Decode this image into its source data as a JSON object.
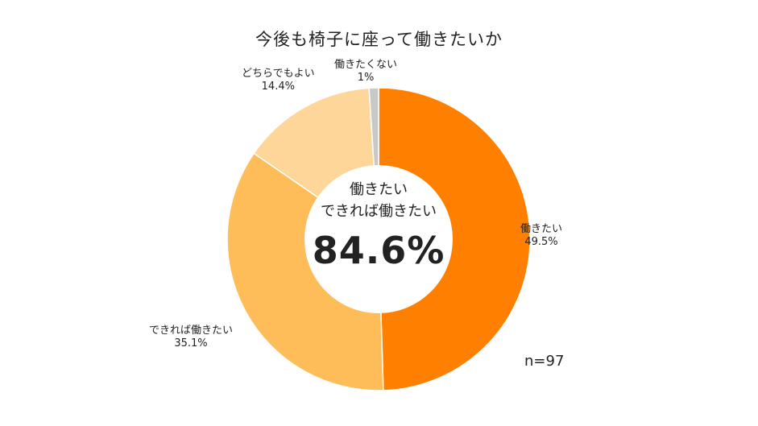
{
  "chart_data": {
    "type": "pie",
    "title": "今後も椅子に座って働きたいか",
    "categories": [
      "働きたい",
      "できれば働きたい",
      "どちらでもよい",
      "働きたくない"
    ],
    "values": [
      49.5,
      35.1,
      14.4,
      1.0
    ],
    "value_labels": [
      "49.5%",
      "35.1%",
      "14.4%",
      "1%"
    ],
    "colors": [
      "#ff7f00",
      "#ffbd59",
      "#ffd699",
      "#c8c8c8"
    ],
    "donut": true,
    "start_angle": "12 o'clock",
    "direction": "clockwise",
    "center_text": {
      "line1": "働きたい",
      "line2": "できれば働きたい",
      "value": "84.6%"
    },
    "sample_size": "n=97",
    "legend": "none"
  }
}
